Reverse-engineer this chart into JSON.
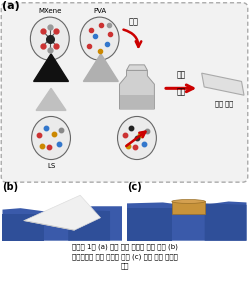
{
  "fig_width": 2.49,
  "fig_height": 2.99,
  "dpi": 100,
  "bg_color": "#ffffff",
  "caption_line1": "＜그림 1＞ (a) 유연 압력 센서의 제작 과정 (b)",
  "caption_line2": "하이브리드 나노 섬유의 사진 (c) 유연 압력 센서의",
  "caption_line3": "사진",
  "label_a": "(a)",
  "label_b": "(b)",
  "label_c": "(c)",
  "label_mxene": "MXene",
  "label_pva": "PVA",
  "label_ls": "LS",
  "label_mix": "교반",
  "label_electrospin1": "전기",
  "label_electrospin2": "방사",
  "label_nanofiber": "나노 섬유",
  "arrow_color": "#cc0000",
  "dashed_color": "#aaaaaa",
  "panel_a_bg": "#f2f2f2",
  "photo_b_bg": "#0a0a0a",
  "photo_c_bg": "#c8b898"
}
